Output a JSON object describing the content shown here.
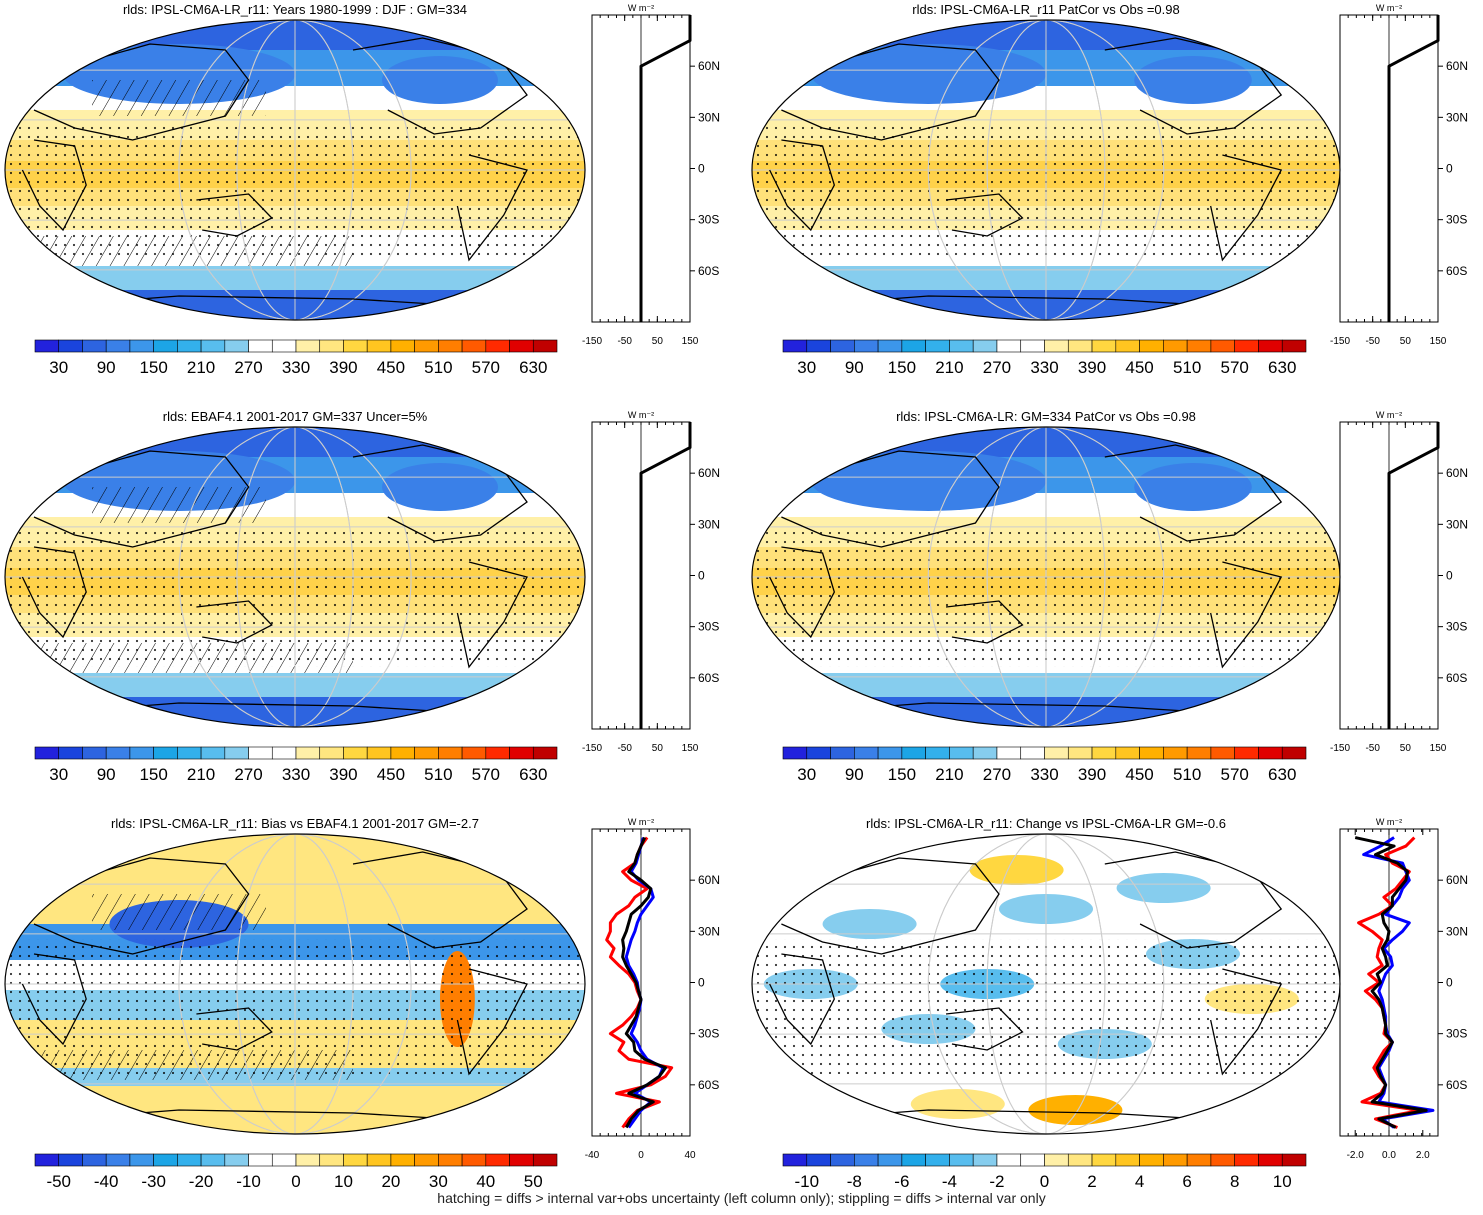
{
  "footer": "hatching = diffs > internal var+obs uncertainty (left column only); stippling = diffs > internal var only",
  "panels": [
    {
      "title": "rlds: IPSL-CM6A-LR_r11: Years 1980-1999 : DJF : GM=334",
      "kind": "abs",
      "hatch": true
    },
    {
      "title": "rlds: IPSL-CM6A-LR_r11 PatCor vs Obs =0.98",
      "kind": "abs",
      "hatch": false
    },
    {
      "title": "rlds: EBAF4.1 2001-2017 GM=337 Uncer=5%",
      "kind": "abs",
      "hatch": true
    },
    {
      "title": "rlds: IPSL-CM6A-LR: GM=334 PatCor vs Obs =0.98",
      "kind": "abs",
      "hatch": false
    },
    {
      "title": "rlds: IPSL-CM6A-LR_r11: Bias vs EBAF4.1 2001-2017 GM=-2.7",
      "kind": "bias",
      "hatch": true
    },
    {
      "title": "rlds: IPSL-CM6A-LR_r11: Change vs IPSL-CM6A-LR GM=-0.6",
      "kind": "change",
      "hatch": false
    }
  ],
  "colorbars": {
    "abs": {
      "labels": [
        "30",
        "90",
        "150",
        "210",
        "270",
        "330",
        "390",
        "450",
        "510",
        "570",
        "630"
      ]
    },
    "bias": {
      "labels": [
        "-50",
        "-40",
        "-30",
        "-20",
        "-10",
        "0",
        "10",
        "20",
        "30",
        "40",
        "50"
      ]
    },
    "change": {
      "labels": [
        "-10",
        "-8",
        "-6",
        "-4",
        "-2",
        "0",
        "2",
        "4",
        "6",
        "8",
        "10"
      ]
    }
  },
  "colorbar_colors": [
    "#2222dd",
    "#1a44dd",
    "#2d64e0",
    "#3a80e8",
    "#3c96ea",
    "#1ca5e6",
    "#33b0ec",
    "#58bdee",
    "#86cdee",
    "#ffffff",
    "#ffffff",
    "#fff0a8",
    "#ffe680",
    "#ffd740",
    "#ffc520",
    "#ffb000",
    "#ff9a00",
    "#ff7e00",
    "#ff5a00",
    "#ff2a00",
    "#e00000",
    "#c00000"
  ],
  "zonal_unit": "W m⁻²",
  "zonal_lat_labels": [
    "60N",
    "30N",
    "0",
    "30S",
    "60S"
  ],
  "chart_data": [
    {
      "type": "line",
      "panel": "zonal-abs-model",
      "xlim": [
        -150,
        150
      ],
      "xticks": [
        "-150",
        "-50",
        "50",
        "150"
      ],
      "ylabels": [
        "60N",
        "30N",
        "0",
        "30S",
        "60S"
      ],
      "series": [
        {
          "color": "#000000",
          "x": [
            0,
            0,
            0,
            0,
            150,
            150
          ],
          "y": [
            -90,
            -60,
            0,
            60,
            75,
            90
          ]
        }
      ]
    },
    {
      "type": "line",
      "panel": "zonal-bias",
      "xlim": [
        -40,
        40
      ],
      "xticks": [
        "-40",
        "0",
        "40"
      ],
      "ylabels": [
        "60N",
        "30N",
        "0",
        "30S",
        "60S"
      ],
      "series": [
        {
          "color": "#ff0000",
          "y": [
            -85,
            -80,
            -75,
            -70,
            -65,
            -60,
            -55,
            -50,
            -45,
            -40,
            -35,
            -30,
            -25,
            -20,
            -15,
            -10,
            -5,
            0,
            5,
            10,
            15,
            20,
            25,
            30,
            35,
            40,
            45,
            50,
            55,
            60,
            65,
            70,
            75,
            80,
            85
          ],
          "x": [
            -15,
            -10,
            -3,
            15,
            -20,
            8,
            20,
            25,
            -10,
            -18,
            -14,
            -25,
            -15,
            -8,
            -3,
            0,
            -3,
            -5,
            -10,
            -18,
            -25,
            -22,
            -28,
            -25,
            -25,
            -20,
            -10,
            -5,
            5,
            -8,
            -15,
            -5,
            -3,
            0,
            5
          ]
        },
        {
          "color": "#0000ff",
          "y": [
            -85,
            -80,
            -75,
            -70,
            -65,
            -60,
            -55,
            -50,
            -45,
            -40,
            -35,
            -30,
            -25,
            -20,
            -15,
            -10,
            -5,
            0,
            5,
            10,
            15,
            20,
            25,
            30,
            35,
            40,
            45,
            50,
            55,
            60,
            65,
            70,
            75,
            80,
            85
          ],
          "x": [
            -10,
            -5,
            0,
            8,
            -5,
            5,
            15,
            18,
            5,
            0,
            -3,
            -8,
            -5,
            -3,
            -1,
            0,
            -2,
            -3,
            -6,
            -10,
            -12,
            -10,
            -8,
            -5,
            -3,
            0,
            5,
            10,
            8,
            -2,
            -8,
            -4,
            -2,
            0,
            2
          ]
        },
        {
          "color": "#000000",
          "y": [
            -85,
            -80,
            -75,
            -70,
            -65,
            -60,
            -55,
            -50,
            -45,
            -40,
            -35,
            -30,
            -25,
            -20,
            -15,
            -10,
            -5,
            0,
            5,
            10,
            15,
            20,
            25,
            30,
            35,
            40,
            45,
            50,
            55,
            60,
            65,
            70,
            75,
            80,
            85
          ],
          "x": [
            -12,
            -8,
            -2,
            10,
            -10,
            5,
            15,
            20,
            3,
            -5,
            -6,
            -12,
            -8,
            -4,
            -2,
            0,
            -2,
            -4,
            -8,
            -12,
            -15,
            -14,
            -15,
            -12,
            -10,
            -8,
            0,
            6,
            8,
            0,
            -10,
            -5,
            -3,
            0,
            3
          ]
        }
      ]
    },
    {
      "type": "line",
      "panel": "zonal-change",
      "xlim": [
        -2.9,
        2.9
      ],
      "xticks": [
        "-2.0",
        "0.0",
        "2.0"
      ],
      "ylabels": [
        "60N",
        "30N",
        "0",
        "30S",
        "60S"
      ],
      "series": [
        {
          "color": "#ff0000",
          "y": [
            -85,
            -80,
            -75,
            -70,
            -65,
            -60,
            -55,
            -50,
            -45,
            -40,
            -35,
            -30,
            -25,
            -20,
            -15,
            -10,
            -5,
            0,
            5,
            10,
            15,
            20,
            25,
            30,
            35,
            40,
            45,
            50,
            55,
            60,
            65,
            70,
            75,
            80,
            85
          ],
          "x": [
            0.5,
            -0.8,
            1.8,
            -1.6,
            -0.5,
            -0.2,
            -0.6,
            -0.9,
            -0.6,
            -0.3,
            0.2,
            -0.3,
            -0.2,
            -0.3,
            -0.4,
            -0.8,
            -1.4,
            -0.6,
            -1.2,
            -0.4,
            -0.7,
            -0.6,
            -0.4,
            -1.0,
            -1.8,
            -0.6,
            0.2,
            -0.3,
            0.4,
            0.8,
            1.2,
            0.2,
            -0.2,
            1.0,
            1.5
          ]
        },
        {
          "color": "#0000ff",
          "y": [
            -85,
            -80,
            -75,
            -70,
            -65,
            -60,
            -55,
            -50,
            -45,
            -40,
            -35,
            -30,
            -25,
            -20,
            -15,
            -10,
            -5,
            0,
            5,
            10,
            15,
            20,
            25,
            30,
            35,
            40,
            45,
            50,
            55,
            60,
            65,
            70,
            75,
            80,
            85
          ],
          "x": [
            0.3,
            -0.4,
            2.6,
            -0.6,
            -0.3,
            -0.2,
            -0.4,
            -0.6,
            -0.3,
            0.0,
            0.2,
            -0.1,
            -0.2,
            -0.2,
            -0.3,
            -0.4,
            -0.6,
            -0.4,
            -0.2,
            0.2,
            0.1,
            -0.3,
            0.2,
            0.8,
            1.2,
            -0.2,
            0.2,
            0.6,
            0.8,
            1.2,
            1.0,
            0.8,
            -1.5,
            -0.5,
            0.3
          ]
        },
        {
          "color": "#000000",
          "y": [
            -85,
            -80,
            -75,
            -70,
            -65,
            -60,
            -55,
            -50,
            -45,
            -40,
            -35,
            -30,
            -25,
            -20,
            -15,
            -10,
            -5,
            0,
            5,
            10,
            15,
            20,
            25,
            30,
            35,
            40,
            45,
            50,
            55,
            60,
            65,
            70,
            75,
            80,
            85
          ],
          "x": [
            0.4,
            -0.6,
            2.2,
            -1.0,
            -0.4,
            -0.2,
            -0.5,
            -0.7,
            -0.4,
            -0.1,
            0.2,
            -0.2,
            -0.2,
            -0.3,
            -0.4,
            -0.6,
            -1.0,
            -0.5,
            -0.7,
            -0.1,
            -0.2,
            -0.4,
            -0.1,
            0.0,
            -0.3,
            -0.4,
            0.2,
            0.2,
            0.6,
            1.0,
            1.1,
            0.5,
            -0.8,
            0.3,
            -2.0
          ]
        }
      ]
    }
  ]
}
